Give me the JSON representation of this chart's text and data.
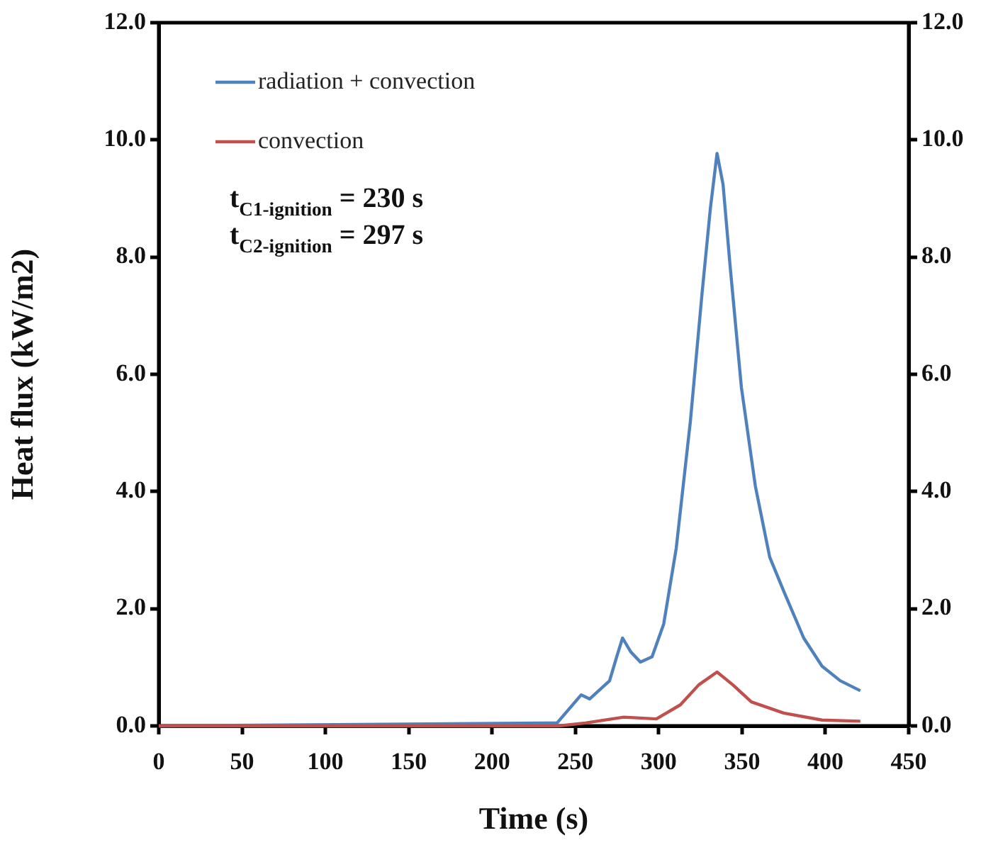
{
  "chart_data": {
    "type": "line",
    "xlabel": "Time (s)",
    "ylabel": "Heat flux (kW/m2)",
    "xlim": [
      0,
      450
    ],
    "xticks": [
      0,
      50,
      100,
      150,
      200,
      250,
      300,
      350,
      400,
      450
    ],
    "ylim": [
      0,
      12
    ],
    "yticks": [
      {
        "value": 0,
        "label": "0.0"
      },
      {
        "value": 2,
        "label": "2.0"
      },
      {
        "value": 4,
        "label": "4.0"
      },
      {
        "value": 6,
        "label": "6.0"
      },
      {
        "value": 8,
        "label": "8.0"
      },
      {
        "value": 10,
        "label": "10.0"
      },
      {
        "value": 12,
        "label": "12.0"
      }
    ],
    "y2lim": [
      0,
      12
    ],
    "y2ticks": [
      {
        "value": 0,
        "label": "0.0"
      },
      {
        "value": 2,
        "label": "2.0"
      },
      {
        "value": 4,
        "label": "4.0"
      },
      {
        "value": 6,
        "label": "6.0"
      },
      {
        "value": 8,
        "label": "8.0"
      },
      {
        "value": 10,
        "label": "10.0"
      },
      {
        "value": 12,
        "label": "12.0"
      }
    ],
    "grid": false,
    "legend": "top left",
    "marker": "none",
    "line_style": "solid",
    "annotations": [
      "t$_{C1-ignition}$ = 230 s",
      "t$_{C2-ignition}$ = 297 s"
    ],
    "series": [
      {
        "name": "radiation + convection",
        "color": "#4f81bd",
        "x": [
          0,
          239,
          253.5,
          258.6,
          270.5,
          274.8,
          278.3,
          283.3,
          289,
          296,
          303,
          310.5,
          319,
          326,
          331,
          335,
          338.6,
          342.8,
          349.6,
          358,
          366.6,
          375,
          387,
          398,
          409,
          421
        ],
        "values": [
          0,
          0.05,
          0.53,
          0.46,
          0.77,
          1.18,
          1.5,
          1.26,
          1.09,
          1.18,
          1.74,
          3.03,
          5.2,
          7.38,
          8.83,
          9.77,
          9.24,
          7.86,
          5.78,
          4.09,
          2.88,
          2.3,
          1.5,
          1.02,
          0.77,
          0.6
        ]
      },
      {
        "name": "convection",
        "color": "#c0504d",
        "x": [
          0,
          240,
          256,
          279,
          298.6,
          313,
          324,
          335,
          344.5,
          355.6,
          375,
          398,
          421
        ],
        "values": [
          0,
          0,
          0.05,
          0.15,
          0.12,
          0.36,
          0.7,
          0.92,
          0.7,
          0.41,
          0.22,
          0.1,
          0.08
        ]
      }
    ]
  }
}
